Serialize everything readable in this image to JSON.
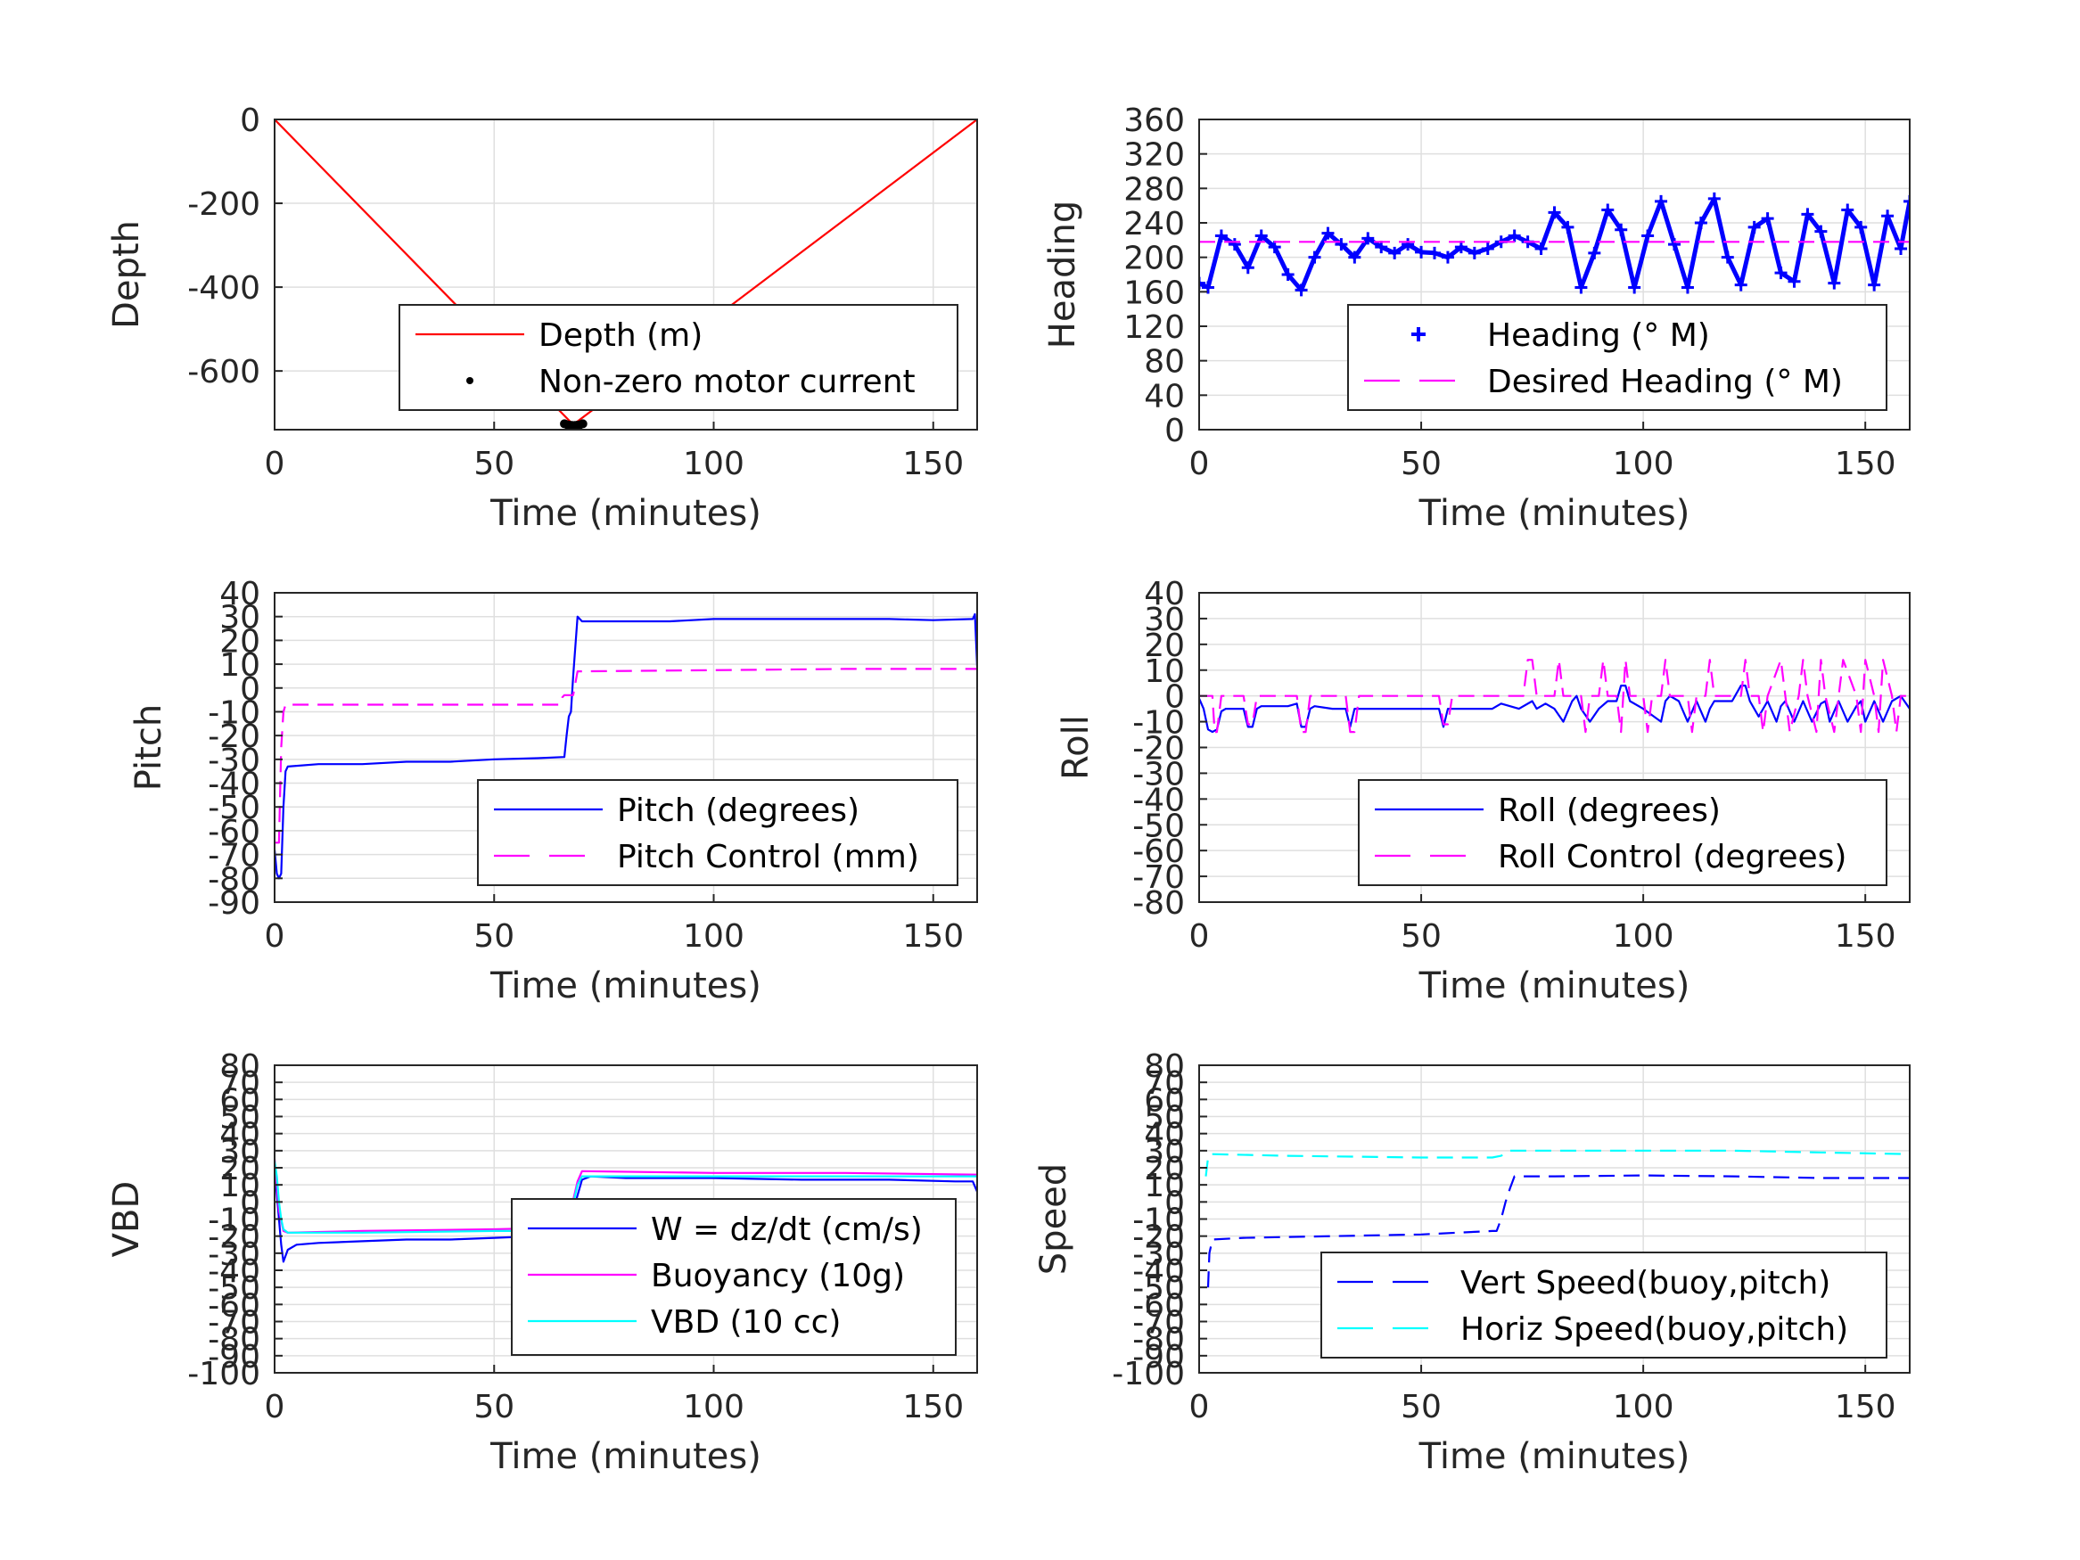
{
  "chart_data": [
    {
      "type": "line",
      "ylabel": "Depth",
      "xlabel": "Time (minutes)",
      "xlim": [
        0,
        160
      ],
      "ylim": [
        -740,
        0
      ],
      "xticks": [
        "0",
        "50",
        "100",
        "150"
      ],
      "xtick_values": [
        0,
        50,
        100,
        150
      ],
      "yticks": [
        "0",
        "-200",
        "-400",
        "-600"
      ],
      "ytick_values": [
        0,
        -200,
        -400,
        -600
      ],
      "grid": true,
      "legend_position": "bottom-right",
      "legend": [
        "Depth (m)",
        "Non-zero motor current"
      ],
      "series": [
        {
          "name": "Depth (m)",
          "color": "#ff0000",
          "style": "solid",
          "x": [
            0,
            68,
            160
          ],
          "y": [
            0,
            -728,
            0
          ]
        },
        {
          "name": "Non-zero motor current",
          "color": "#000000",
          "style": "marker",
          "x": [
            66,
            66.6,
            67.2,
            67.8,
            68.4,
            69,
            69.6,
            70.2
          ],
          "y": [
            -726,
            -728,
            -729,
            -730,
            -730,
            -729,
            -728,
            -726
          ]
        }
      ]
    },
    {
      "type": "line",
      "ylabel": "Heading",
      "xlabel": "Time (minutes)",
      "xlim": [
        0,
        160
      ],
      "ylim": [
        0,
        360
      ],
      "xticks": [
        "0",
        "50",
        "100",
        "150"
      ],
      "xtick_values": [
        0,
        50,
        100,
        150
      ],
      "yticks": [
        "0",
        "40",
        "80",
        "120",
        "160",
        "200",
        "240",
        "280",
        "320",
        "360"
      ],
      "ytick_values": [
        0,
        40,
        80,
        120,
        160,
        200,
        240,
        280,
        320,
        360
      ],
      "grid": true,
      "legend_position": "bottom-right",
      "legend": [
        "Heading (° M)",
        "Desired Heading (° M)"
      ],
      "series": [
        {
          "name": "Heading (° M)",
          "color": "#0000ff",
          "style": "marker-plus",
          "x": [
            0,
            2,
            5,
            8,
            11,
            14,
            17,
            20,
            23,
            26,
            29,
            32,
            35,
            38,
            41,
            44,
            47,
            50,
            53,
            56,
            59,
            62,
            65,
            68,
            71,
            74,
            77,
            80,
            83,
            86,
            89,
            92,
            95,
            98,
            101,
            104,
            107,
            110,
            113,
            116,
            119,
            122,
            125,
            128,
            131,
            134,
            137,
            140,
            143,
            146,
            149,
            152,
            155,
            158,
            160
          ],
          "y": [
            170,
            165,
            225,
            215,
            188,
            225,
            212,
            180,
            162,
            200,
            228,
            215,
            200,
            222,
            212,
            205,
            215,
            206,
            205,
            200,
            212,
            205,
            210,
            218,
            225,
            218,
            210,
            252,
            235,
            165,
            205,
            255,
            232,
            165,
            225,
            265,
            215,
            165,
            240,
            268,
            200,
            168,
            235,
            245,
            182,
            172,
            250,
            230,
            170,
            255,
            235,
            168,
            248,
            210,
            265
          ]
        },
        {
          "name": "Desired Heading (° M)",
          "color": "#ff00ff",
          "style": "dashed",
          "x": [
            0,
            160
          ],
          "y": [
            218,
            218
          ]
        }
      ]
    },
    {
      "type": "line",
      "ylabel": "Pitch",
      "xlabel": "Time (minutes)",
      "xlim": [
        0,
        160
      ],
      "ylim": [
        -90,
        40
      ],
      "xticks": [
        "0",
        "50",
        "100",
        "150"
      ],
      "xtick_values": [
        0,
        50,
        100,
        150
      ],
      "yticks": [
        "40",
        "30",
        "20",
        "10",
        "0",
        "-10",
        "-20",
        "-30",
        "-40",
        "-50",
        "-60",
        "-70",
        "-80",
        "-90"
      ],
      "ytick_values": [
        40,
        30,
        20,
        10,
        0,
        -10,
        -20,
        -30,
        -40,
        -50,
        -60,
        -70,
        -80,
        -90
      ],
      "grid": true,
      "legend_position": "bottom-right",
      "legend": [
        "Pitch (degrees)",
        "Pitch Control (mm)"
      ],
      "series": [
        {
          "name": "Pitch (degrees)",
          "color": "#0000ff",
          "style": "solid",
          "x": [
            0,
            0.5,
            1,
            1.5,
            2,
            2.5,
            3,
            10,
            20,
            30,
            40,
            50,
            60,
            66,
            66.5,
            67,
            67.5,
            68,
            69,
            70,
            80,
            90,
            100,
            110,
            120,
            130,
            140,
            150,
            159,
            159.5,
            160
          ],
          "y": [
            -68,
            -78,
            -80,
            -78,
            -50,
            -35,
            -33,
            -32,
            -32,
            -31,
            -31,
            -30,
            -29.5,
            -29,
            -20,
            -12,
            -10,
            5,
            30,
            28,
            28,
            28,
            29,
            29,
            29,
            29,
            29,
            28.5,
            29,
            31,
            9
          ]
        },
        {
          "name": "Pitch Control (mm)",
          "color": "#ff00ff",
          "style": "dashed",
          "x": [
            0,
            1,
            1.5,
            2,
            2.5,
            3,
            30,
            60,
            65,
            65.5,
            66,
            67,
            68,
            69,
            70,
            100,
            130,
            160
          ],
          "y": [
            -65,
            -65,
            -25,
            -10,
            -7,
            -7,
            -7,
            -7,
            -7,
            -4,
            -3,
            -3,
            -3,
            7,
            7,
            7.5,
            8,
            8
          ]
        }
      ]
    },
    {
      "type": "line",
      "ylabel": "Roll",
      "xlabel": "Time (minutes)",
      "xlim": [
        0,
        160
      ],
      "ylim": [
        -80,
        40
      ],
      "xticks": [
        "0",
        "50",
        "100",
        "150"
      ],
      "xtick_values": [
        0,
        50,
        100,
        150
      ],
      "yticks": [
        "40",
        "30",
        "20",
        "10",
        "0",
        "-10",
        "-20",
        "-30",
        "-40",
        "-50",
        "-60",
        "-70",
        "-80"
      ],
      "ytick_values": [
        40,
        30,
        20,
        10,
        0,
        -10,
        -20,
        -30,
        -40,
        -50,
        -60,
        -70,
        -80
      ],
      "grid": true,
      "legend_position": "bottom-right",
      "legend": [
        "Roll (degrees)",
        "Roll Control (degrees)"
      ],
      "series": [
        {
          "name": "Roll (degrees)",
          "color": "#0000ff",
          "style": "solid",
          "x": [
            0,
            1,
            2,
            3,
            4,
            5,
            6,
            10,
            11,
            12,
            13,
            14,
            20,
            22,
            23,
            24,
            25,
            26,
            30,
            33,
            34,
            35,
            36,
            40,
            50,
            54,
            55,
            56,
            57,
            62,
            66,
            68,
            72,
            75,
            76,
            78,
            80,
            82,
            84,
            85,
            86,
            88,
            90,
            92,
            94,
            95,
            96,
            97,
            100,
            104,
            105,
            106,
            108,
            110,
            112,
            114,
            115,
            116,
            120,
            122,
            123,
            124,
            126,
            128,
            130,
            131,
            132,
            134,
            136,
            138,
            140,
            141,
            142,
            144,
            146,
            148,
            149,
            150,
            152,
            154,
            156,
            158,
            160
          ],
          "y": [
            -1,
            -5,
            -13,
            -14,
            -13,
            -6,
            -5,
            -5,
            -12,
            -12,
            -5,
            -4,
            -4,
            -3,
            -12,
            -12,
            -5,
            -4,
            -5,
            -5,
            -12,
            -5,
            -5,
            -5,
            -5,
            -5,
            -12,
            -5,
            -5,
            -5,
            -5,
            -3,
            -5,
            -2,
            -5,
            -3,
            -5,
            -10,
            -2,
            0,
            -5,
            -10,
            -5,
            -2,
            -2,
            4,
            4,
            -2,
            -5,
            -10,
            -2,
            0,
            -2,
            -10,
            -2,
            -10,
            -5,
            -2,
            -2,
            4,
            4,
            -2,
            -8,
            -2,
            -10,
            -4,
            -2,
            -10,
            -2,
            -10,
            -3,
            -2,
            -10,
            -2,
            -10,
            -4,
            -2,
            -10,
            -2,
            -10,
            -2,
            0,
            -5
          ]
        },
        {
          "name": "Roll Control (degrees)",
          "color": "#ff00ff",
          "style": "dashed",
          "x": [
            0,
            3,
            3.5,
            4,
            5,
            6,
            10,
            11,
            12,
            13,
            14,
            22,
            23,
            24,
            25,
            26,
            33,
            34,
            35,
            36,
            54,
            55,
            56,
            57,
            66,
            70,
            73,
            74,
            75,
            76,
            80,
            81,
            82,
            86,
            87,
            88,
            90,
            91,
            92,
            94,
            95,
            96,
            97,
            100,
            101,
            102,
            104,
            105,
            106,
            110,
            111,
            112,
            114,
            115,
            116,
            122,
            123,
            124,
            126,
            127,
            128,
            131,
            132,
            133,
            135,
            136,
            137,
            139,
            140,
            141,
            143,
            144,
            145,
            148,
            149,
            150,
            152,
            153,
            154,
            156,
            157,
            158,
            160
          ],
          "y": [
            0,
            0,
            -14,
            -14,
            0,
            0,
            0,
            -11,
            -11,
            0,
            0,
            0,
            -14,
            -14,
            0,
            0,
            0,
            -14,
            -14,
            0,
            0,
            -11,
            -11,
            0,
            0,
            0,
            0,
            14,
            14,
            0,
            0,
            14,
            0,
            0,
            -14,
            0,
            0,
            14,
            0,
            0,
            -14,
            14,
            0,
            0,
            -14,
            0,
            0,
            14,
            0,
            0,
            -14,
            0,
            0,
            14,
            0,
            0,
            14,
            0,
            0,
            -14,
            0,
            14,
            0,
            -14,
            0,
            14,
            0,
            -14,
            14,
            0,
            -14,
            0,
            14,
            0,
            -14,
            14,
            0,
            -14,
            14,
            0,
            -14,
            0,
            0
          ]
        }
      ]
    },
    {
      "type": "line",
      "ylabel": "VBD",
      "xlabel": "Time (minutes)",
      "xlim": [
        0,
        160
      ],
      "ylim": [
        -100,
        80
      ],
      "xticks": [
        "0",
        "50",
        "100",
        "150"
      ],
      "xtick_values": [
        0,
        50,
        100,
        150
      ],
      "yticks": [
        "80",
        "70",
        "60",
        "50",
        "40",
        "30",
        "20",
        "10",
        "0",
        "-10",
        "-20",
        "-30",
        "-40",
        "-50",
        "-60",
        "-70",
        "-80",
        "-90",
        "-100"
      ],
      "ytick_values": [
        80,
        70,
        60,
        50,
        40,
        30,
        20,
        10,
        0,
        -10,
        -20,
        -30,
        -40,
        -50,
        -60,
        -70,
        -80,
        -90,
        -100
      ],
      "grid": true,
      "legend_position": "bottom-right",
      "legend": [
        "W = dz/dt (cm/s)",
        "Buoyancy (10g)",
        "VBD (10 cc)"
      ],
      "series": [
        {
          "name": "W = dz/dt (cm/s)",
          "color": "#0000ff",
          "style": "solid",
          "x": [
            0,
            1,
            1.5,
            2,
            3,
            5,
            10,
            20,
            30,
            40,
            50,
            60,
            66,
            68,
            70,
            72,
            80,
            100,
            120,
            140,
            155,
            159,
            160
          ],
          "y": [
            20,
            -10,
            -25,
            -35,
            -28,
            -25,
            -24,
            -23,
            -22,
            -22,
            -21,
            -20,
            -19,
            -5,
            13,
            15,
            14,
            14,
            13,
            13,
            12,
            12,
            6
          ]
        },
        {
          "name": "Buoyancy (10g)",
          "color": "#ff00ff",
          "style": "solid",
          "x": [
            0,
            1,
            2,
            3,
            20,
            50,
            66,
            67,
            69,
            70,
            100,
            130,
            160
          ],
          "y": [
            25,
            -5,
            -17,
            -18,
            -17,
            -16,
            -15,
            -10,
            12,
            18,
            17,
            17,
            16
          ]
        },
        {
          "name": "VBD (10 cc)",
          "color": "#00ffff",
          "style": "solid",
          "x": [
            0,
            0.5,
            1,
            1.5,
            2,
            3,
            20,
            50,
            66,
            67,
            69,
            70,
            100,
            130,
            160
          ],
          "y": [
            24,
            15,
            0,
            -10,
            -16,
            -18,
            -18,
            -17,
            -17,
            -12,
            10,
            15,
            15,
            15,
            15
          ]
        }
      ]
    },
    {
      "type": "line",
      "ylabel": "Speed",
      "xlabel": "Time (minutes)",
      "xlim": [
        0,
        160
      ],
      "ylim": [
        -100,
        80
      ],
      "xticks": [
        "0",
        "50",
        "100",
        "150"
      ],
      "xtick_values": [
        0,
        50,
        100,
        150
      ],
      "yticks": [
        "80",
        "70",
        "60",
        "50",
        "40",
        "30",
        "20",
        "10",
        "0",
        "-10",
        "-20",
        "-30",
        "-40",
        "-50",
        "-60",
        "-70",
        "-80",
        "-90",
        "-100"
      ],
      "ytick_values": [
        80,
        70,
        60,
        50,
        40,
        30,
        20,
        10,
        0,
        -10,
        -20,
        -30,
        -40,
        -50,
        -60,
        -70,
        -80,
        -90,
        -100
      ],
      "grid": true,
      "legend_position": "bottom-right",
      "legend": [
        "Vert Speed(buoy,pitch)",
        "Horiz Speed(buoy,pitch)"
      ],
      "series": [
        {
          "name": "Vert Speed(buoy,pitch)",
          "color": "#0000ff",
          "style": "dashed",
          "x": [
            2,
            2.3,
            3,
            10,
            30,
            50,
            66,
            67,
            68,
            69,
            70,
            71,
            80,
            100,
            120,
            140,
            160
          ],
          "y": [
            -50,
            -30,
            -22,
            -21,
            -20,
            -19,
            -17,
            -17,
            -10,
            0,
            8,
            15,
            15,
            15.5,
            15,
            14,
            14
          ]
        },
        {
          "name": "Horiz Speed(buoy,pitch)",
          "color": "#00ffff",
          "style": "dashed",
          "x": [
            1.5,
            2,
            2.5,
            3,
            20,
            50,
            66,
            68,
            70,
            80,
            100,
            120,
            140,
            160
          ],
          "y": [
            15,
            26,
            28,
            28,
            27,
            26,
            26,
            27,
            30,
            30,
            30,
            30,
            29,
            28
          ]
        }
      ]
    }
  ]
}
